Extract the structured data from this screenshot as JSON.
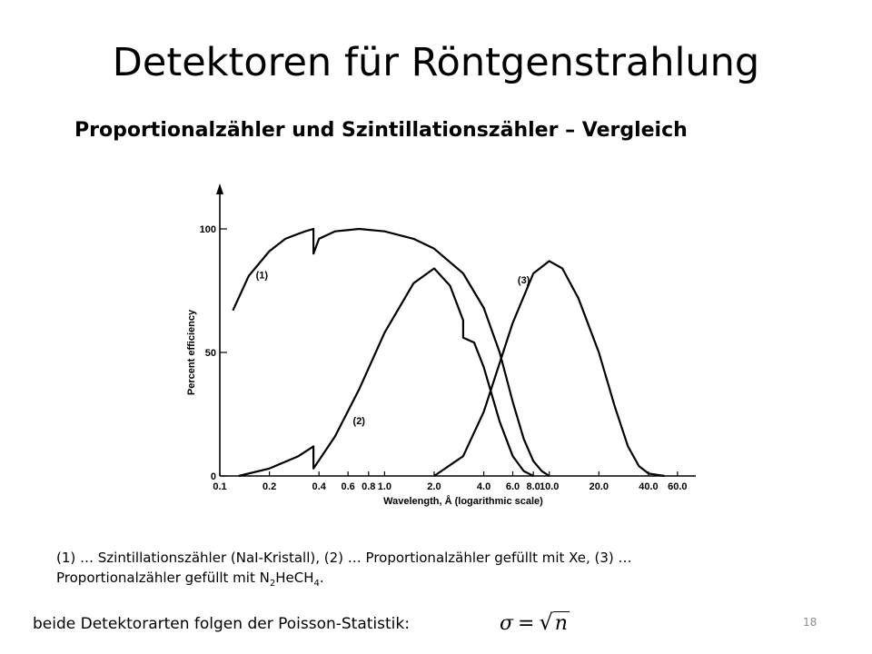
{
  "slide": {
    "title": "Detektoren für Röntgenstrahlung",
    "subtitle": "Proportionalzähler und Szintillationszähler – Vergleich",
    "caption_line1": "(1) … Szintillationszähler (NaI-Kristall), (2) … Proportionalzähler gefüllt mit Xe, (3) …",
    "caption_line2_prefix": "Proportionalzähler gefüllt mit N",
    "caption_line2_sub1": "2",
    "caption_line2_mid": "HeCH",
    "caption_line2_sub2": "4",
    "caption_line2_suffix": ".",
    "footer_text": "beide Detektorarten folgen der Poisson-Statistik:",
    "formula_sigma": "σ",
    "formula_eq": "=",
    "formula_sqrt": "√",
    "formula_n": "n",
    "page_number": "18"
  },
  "chart_data": {
    "type": "line",
    "xlabel": "Wavelength, Å (logarithmic scale)",
    "ylabel": "Percent efficiency",
    "x_scale": "log",
    "xlim": [
      0.1,
      70
    ],
    "ylim": [
      0,
      100
    ],
    "x_ticks": [
      0.1,
      0.2,
      0.4,
      0.6,
      0.8,
      1.0,
      2.0,
      4.0,
      6.0,
      8.0,
      10.0,
      20.0,
      40.0,
      60.0
    ],
    "x_tick_labels": [
      "0.1",
      "0.2",
      "0.4",
      "0.6",
      "0.8",
      "1.0",
      "2.0",
      "4.0",
      "6.0",
      "8.0",
      "10.0",
      "20.0",
      "40.0",
      "60.0"
    ],
    "y_ticks": [
      0,
      50,
      100
    ],
    "y_tick_labels": [
      "0",
      "50",
      "100"
    ],
    "grid": false,
    "series": [
      {
        "name": "(1)",
        "points": [
          [
            0.12,
            67
          ],
          [
            0.15,
            81
          ],
          [
            0.2,
            91
          ],
          [
            0.25,
            96
          ],
          [
            0.3,
            98
          ],
          [
            0.33,
            99
          ],
          [
            0.37,
            100
          ],
          [
            0.37,
            90
          ],
          [
            0.4,
            96
          ],
          [
            0.5,
            99
          ],
          [
            0.7,
            100
          ],
          [
            1.0,
            99
          ],
          [
            1.5,
            96
          ],
          [
            2.0,
            92
          ],
          [
            3.0,
            82
          ],
          [
            4.0,
            68
          ],
          [
            5.0,
            50
          ],
          [
            6.0,
            30
          ],
          [
            7.0,
            15
          ],
          [
            8.0,
            6
          ],
          [
            9.0,
            2
          ],
          [
            10.0,
            0
          ]
        ]
      },
      {
        "name": "(2)",
        "points": [
          [
            0.13,
            0
          ],
          [
            0.2,
            3
          ],
          [
            0.3,
            8
          ],
          [
            0.37,
            12
          ],
          [
            0.37,
            3
          ],
          [
            0.5,
            16
          ],
          [
            0.7,
            35
          ],
          [
            1.0,
            58
          ],
          [
            1.5,
            78
          ],
          [
            2.0,
            84
          ],
          [
            2.5,
            77
          ],
          [
            3.0,
            63
          ],
          [
            3.0,
            56
          ],
          [
            3.5,
            54
          ],
          [
            4.0,
            44
          ],
          [
            5.0,
            22
          ],
          [
            6.0,
            8
          ],
          [
            7.0,
            2
          ],
          [
            8.0,
            0
          ]
        ]
      },
      {
        "name": "(3)",
        "points": [
          [
            2.0,
            0
          ],
          [
            3.0,
            8
          ],
          [
            4.0,
            26
          ],
          [
            6.0,
            62
          ],
          [
            8.0,
            82
          ],
          [
            10.0,
            87
          ],
          [
            12.0,
            84
          ],
          [
            15.0,
            72
          ],
          [
            20.0,
            50
          ],
          [
            25.0,
            28
          ],
          [
            30.0,
            12
          ],
          [
            35.0,
            4
          ],
          [
            40.0,
            1
          ],
          [
            50.0,
            0
          ]
        ]
      }
    ],
    "annotations": [
      {
        "text": "(1)",
        "x": 0.18,
        "y": 80
      },
      {
        "text": "(2)",
        "x": 0.7,
        "y": 21
      },
      {
        "text": "(3)",
        "x": 7.0,
        "y": 78
      }
    ]
  }
}
